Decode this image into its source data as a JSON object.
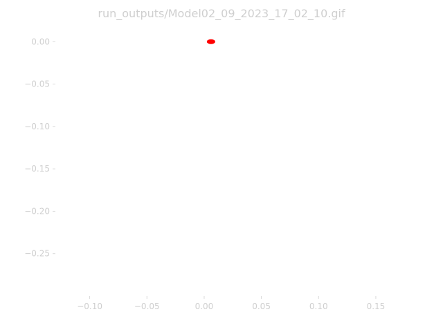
{
  "chart_data": {
    "type": "scatter",
    "title": "run_outputs/Model02_09_2023_17_02_10.gif",
    "xlabel": "",
    "ylabel": "",
    "x_ticks": [
      -0.1,
      -0.05,
      0.0,
      0.05,
      0.1,
      0.15
    ],
    "x_tick_labels": [
      "−0.10",
      "−0.05",
      "0.00",
      "0.05",
      "0.10",
      "0.15"
    ],
    "y_ticks": [
      0.0,
      -0.05,
      -0.1,
      -0.15,
      -0.2,
      -0.25
    ],
    "y_tick_labels": [
      "0.00",
      "−0.05",
      "−0.10",
      "−0.15",
      "−0.20",
      "−0.25"
    ],
    "xlim": [
      -0.13,
      0.17
    ],
    "ylim": [
      -0.3,
      0.01
    ],
    "grid": false,
    "series": [
      {
        "color": "#ff0000",
        "x": [
          0.006
        ],
        "y": [
          0.0
        ]
      }
    ]
  }
}
